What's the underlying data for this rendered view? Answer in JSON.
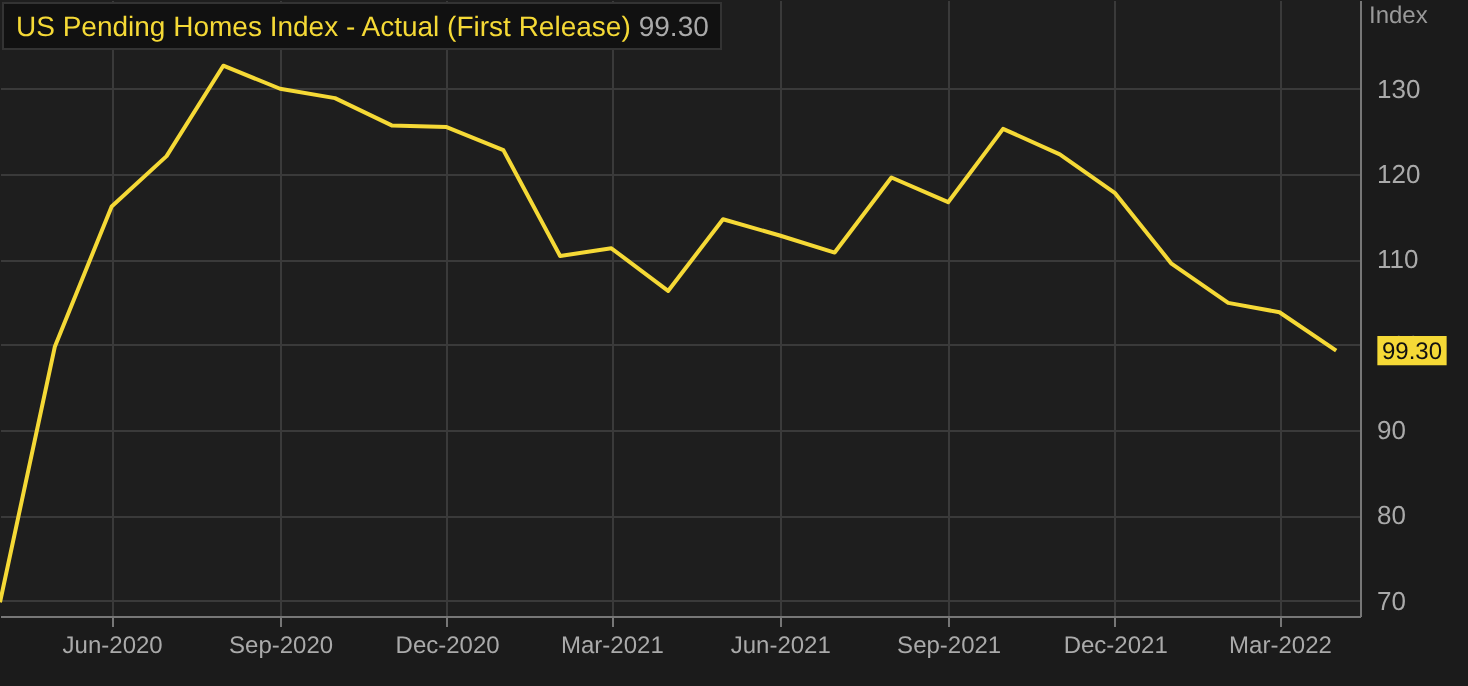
{
  "chart_data": {
    "type": "line",
    "title": "US Pending Homes Index - Actual (First Release)",
    "ylabel": "Index",
    "x": [
      "2020-04",
      "2020-05",
      "2020-06",
      "2020-07",
      "2020-08",
      "2020-09",
      "2020-10",
      "2020-11",
      "2020-12",
      "2021-01",
      "2021-02",
      "2021-03",
      "2021-04",
      "2021-05",
      "2021-06",
      "2021-07",
      "2021-08",
      "2021-09",
      "2021-10",
      "2021-11",
      "2021-12",
      "2022-01",
      "2022-02",
      "2022-03",
      "2022-04"
    ],
    "series": [
      {
        "color": "#f5d936",
        "values": [
          69.8,
          99.8,
          116.2,
          122.1,
          132.7,
          130.0,
          128.9,
          125.7,
          125.5,
          122.8,
          110.4,
          111.3,
          106.3,
          114.7,
          112.8,
          110.8,
          119.6,
          116.7,
          125.3,
          122.3,
          117.8,
          109.5,
          104.9,
          103.8,
          99.3
        ]
      }
    ],
    "annotations": [
      "99.30",
      {
        "text": "99.30",
        "x": "2022-04",
        "y": 99.3
      }
    ],
    "xlim": [
      "2020-04-01",
      "2022-04-14"
    ],
    "xticks": [
      {
        "value": "2020-06-01",
        "label": "Jun-2020"
      },
      {
        "value": "2020-09-01",
        "label": "Sep-2020"
      },
      {
        "value": "2020-12-01",
        "label": "Dec-2020"
      },
      {
        "value": "2021-03-01",
        "label": "Mar-2021"
      },
      {
        "value": "2021-06-01",
        "label": "Jun-2021"
      },
      {
        "value": "2021-09-01",
        "label": "Sep-2021"
      },
      {
        "value": "2021-12-01",
        "label": "Dec-2021"
      },
      {
        "value": "2022-03-01",
        "label": "Mar-2022"
      }
    ],
    "ylim": [
      68.2,
      140.4
    ],
    "yticks": [
      70,
      80,
      90,
      100,
      110,
      120,
      130
    ],
    "grid": true,
    "marker": "none",
    "line_style": "solid"
  }
}
